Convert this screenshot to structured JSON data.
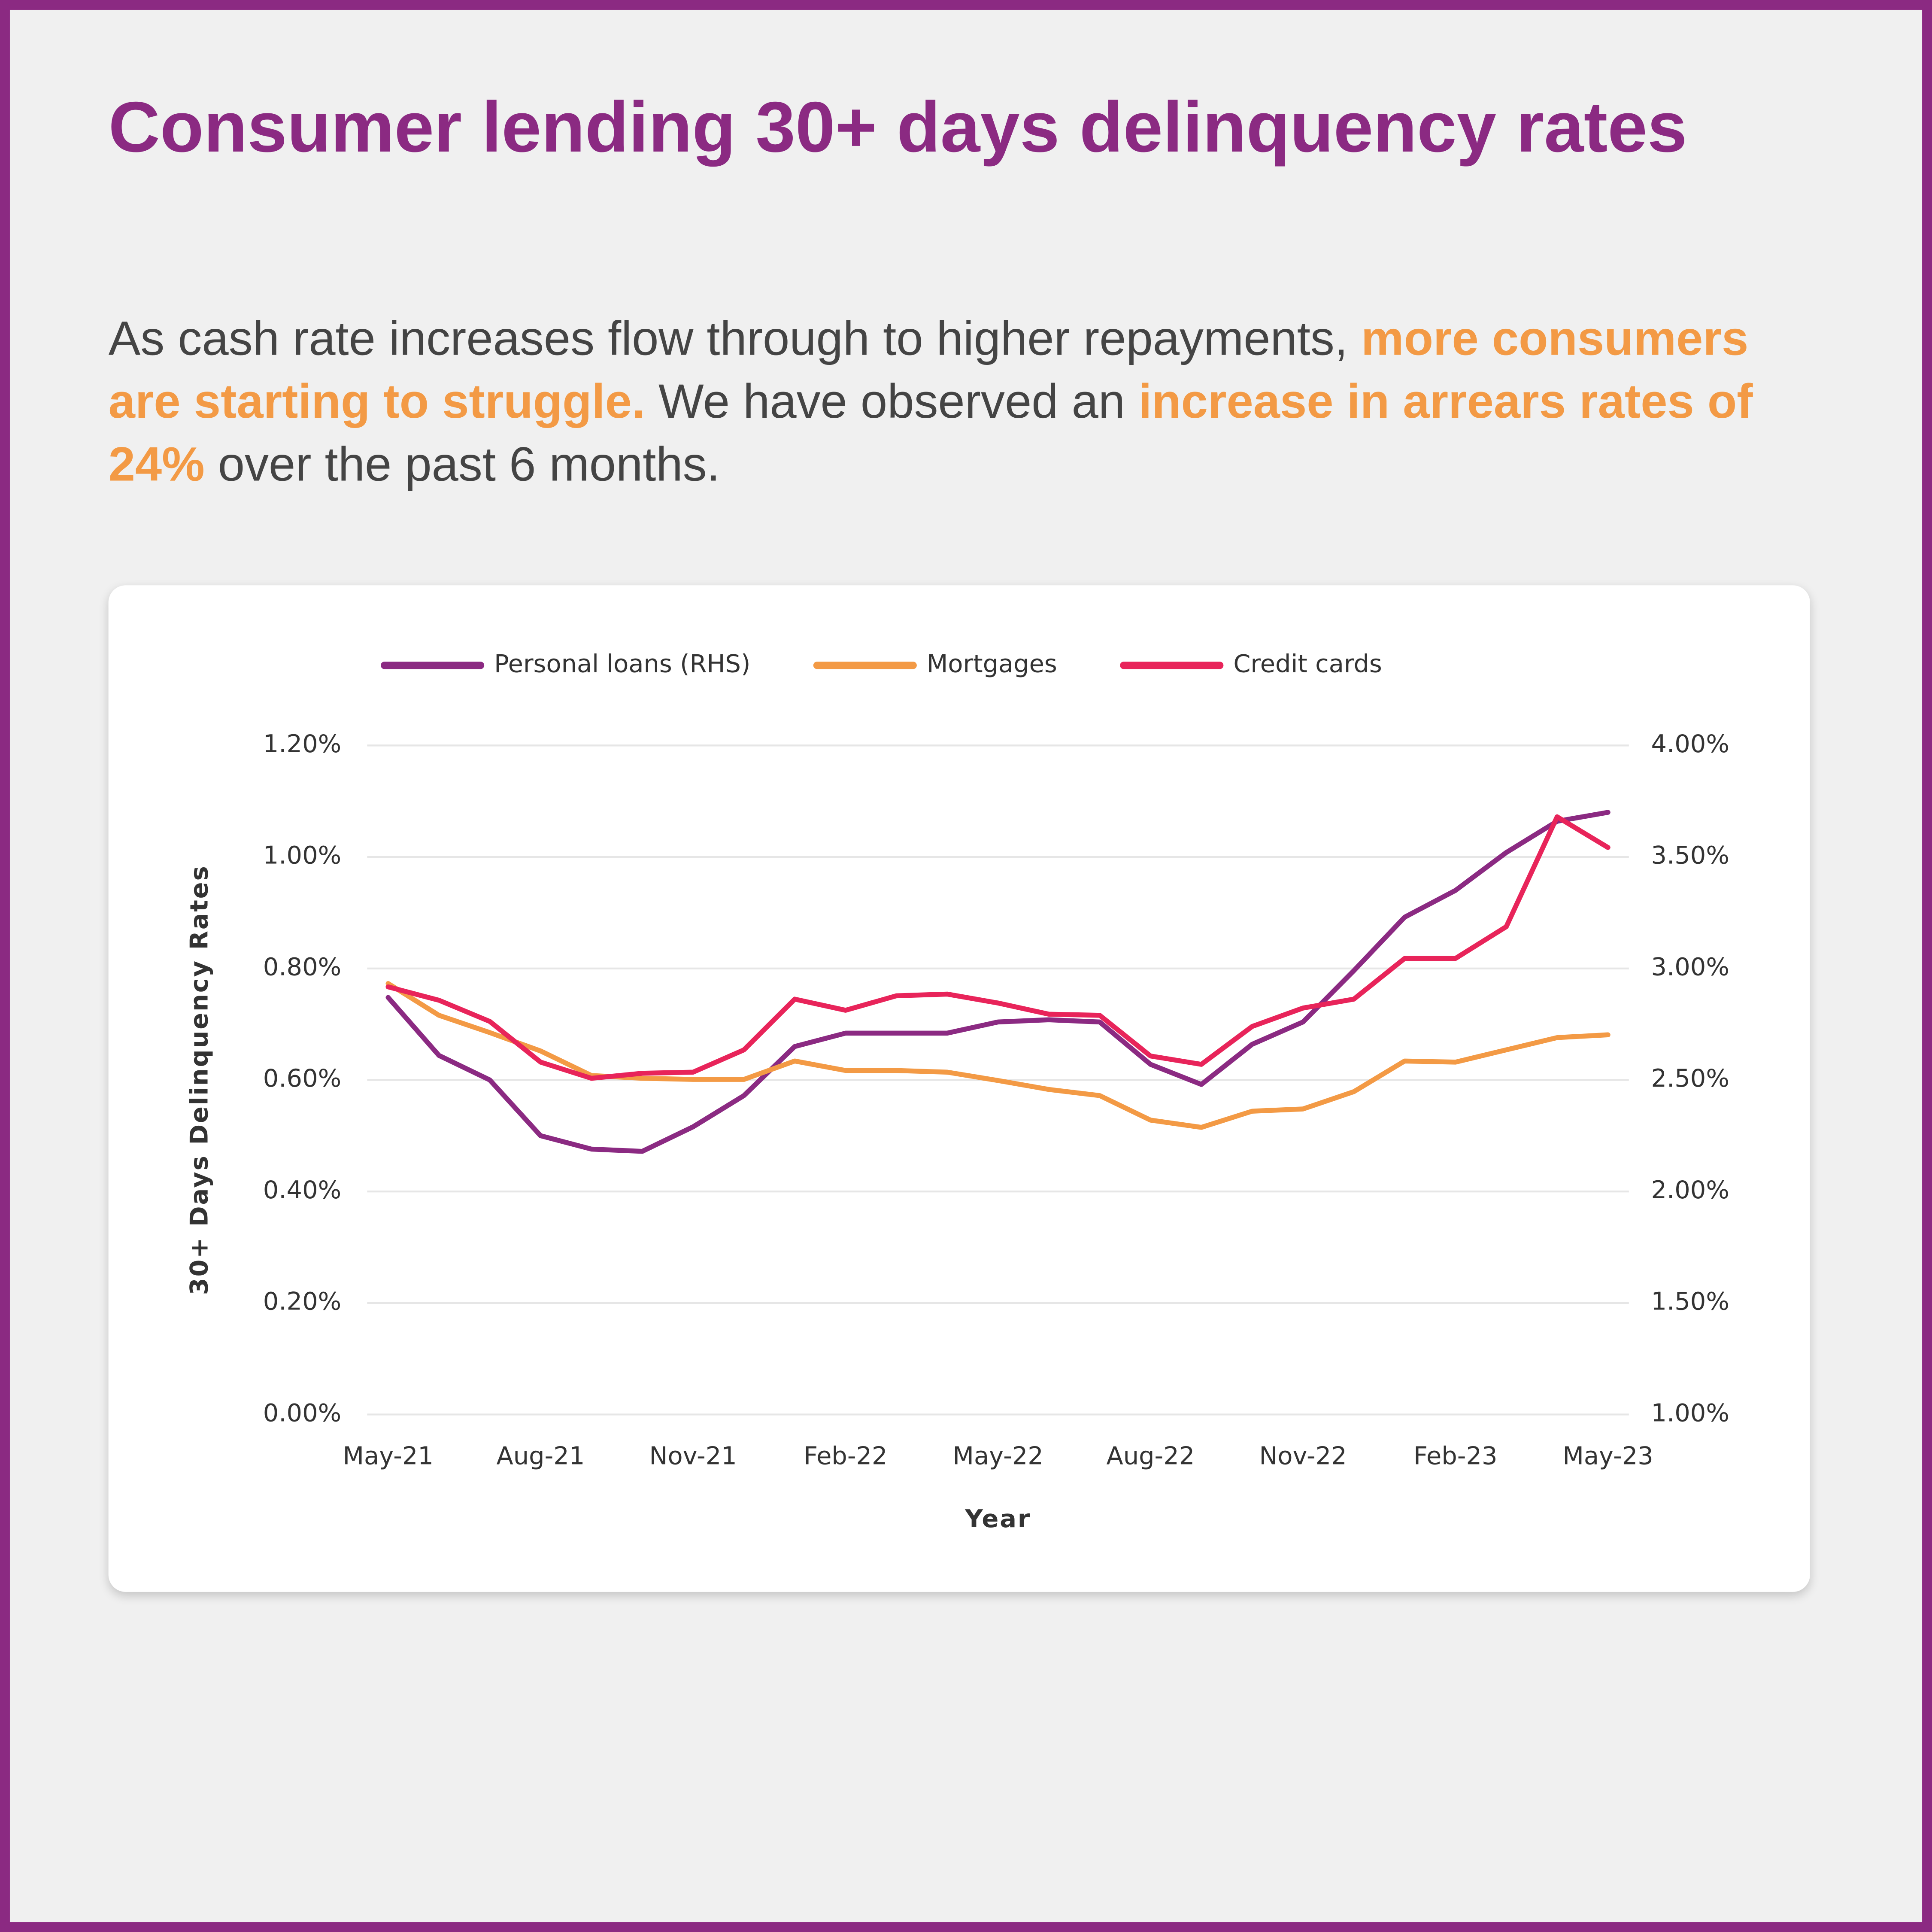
{
  "chart_data": {
    "type": "line",
    "title": "Consumer lending 30+ days delinquency rates",
    "subtitle_parts": [
      {
        "text": "As cash rate increases flow through to higher repayments, ",
        "emphasis": false
      },
      {
        "text": "more consumers are starting to struggle.",
        "emphasis": true
      },
      {
        "text": " We have observed an ",
        "emphasis": false
      },
      {
        "text": "increase in arrears rates of 24%",
        "emphasis": true
      },
      {
        "text": " over the past 6 months.",
        "emphasis": false
      }
    ],
    "emphasis_color": "#f39a45",
    "x_label": "Year",
    "y_label": "30+ Days Delinquency Rates",
    "categories": [
      "May-21",
      null,
      null,
      "Aug-21",
      null,
      null,
      "Nov-21",
      null,
      null,
      "Feb-22",
      null,
      null,
      "May-22",
      null,
      null,
      "Aug-22",
      null,
      null,
      "Nov-22",
      null,
      null,
      "Feb-23",
      null,
      null,
      "May-23"
    ],
    "series": [
      {
        "name": "Personal loans (RHS)",
        "color": "#8b2a82",
        "axis": "y2",
        "values": [
          2.87,
          2.61,
          2.5,
          2.25,
          2.19,
          2.18,
          2.29,
          2.43,
          2.65,
          2.71,
          2.71,
          2.71,
          2.76,
          2.77,
          2.76,
          2.57,
          2.48,
          2.66,
          2.76,
          2.99,
          3.23,
          3.35,
          3.52,
          3.66,
          3.7
        ]
      },
      {
        "name": "Mortgages",
        "color": "#f39a45",
        "values": [
          0.773,
          0.716,
          0.685,
          0.652,
          0.608,
          0.603,
          0.601,
          0.601,
          0.634,
          0.617,
          0.617,
          0.614,
          0.599,
          0.583,
          0.572,
          0.528,
          0.515,
          0.544,
          0.548,
          0.579,
          0.634,
          0.632,
          0.654,
          0.676,
          0.681
        ]
      },
      {
        "name": "Credit cards",
        "color": "#e8245a",
        "values": [
          0.767,
          0.743,
          0.705,
          0.632,
          0.603,
          0.612,
          0.614,
          0.654,
          0.745,
          0.725,
          0.751,
          0.754,
          0.738,
          0.718,
          0.716,
          0.643,
          0.628,
          0.696,
          0.729,
          0.745,
          0.818,
          0.818,
          0.875,
          1.072,
          1.017
        ]
      }
    ],
    "ylim": [
      0,
      1.2
    ],
    "yticks": [
      {
        "value": 0,
        "label": "0.00%"
      },
      {
        "value": 0.2,
        "label": "0.20%"
      },
      {
        "value": 0.4,
        "label": "0.40%"
      },
      {
        "value": 0.6,
        "label": "0.60%"
      },
      {
        "value": 0.8,
        "label": "0.80%"
      },
      {
        "value": 1.0,
        "label": "1.00%"
      },
      {
        "value": 1.2,
        "label": "1.20%"
      }
    ],
    "y2lim": [
      1,
      4
    ],
    "y2ticks": [
      {
        "value": 1,
        "label": "1.00%"
      },
      {
        "value": 1.5,
        "label": "1.50%"
      },
      {
        "value": 2,
        "label": "2.00%"
      },
      {
        "value": 2.5,
        "label": "2.50%"
      },
      {
        "value": 3,
        "label": "3.00%"
      },
      {
        "value": 3.5,
        "label": "3.50%"
      },
      {
        "value": 4,
        "label": "4.00%"
      }
    ],
    "grid": true,
    "legend": "top"
  }
}
